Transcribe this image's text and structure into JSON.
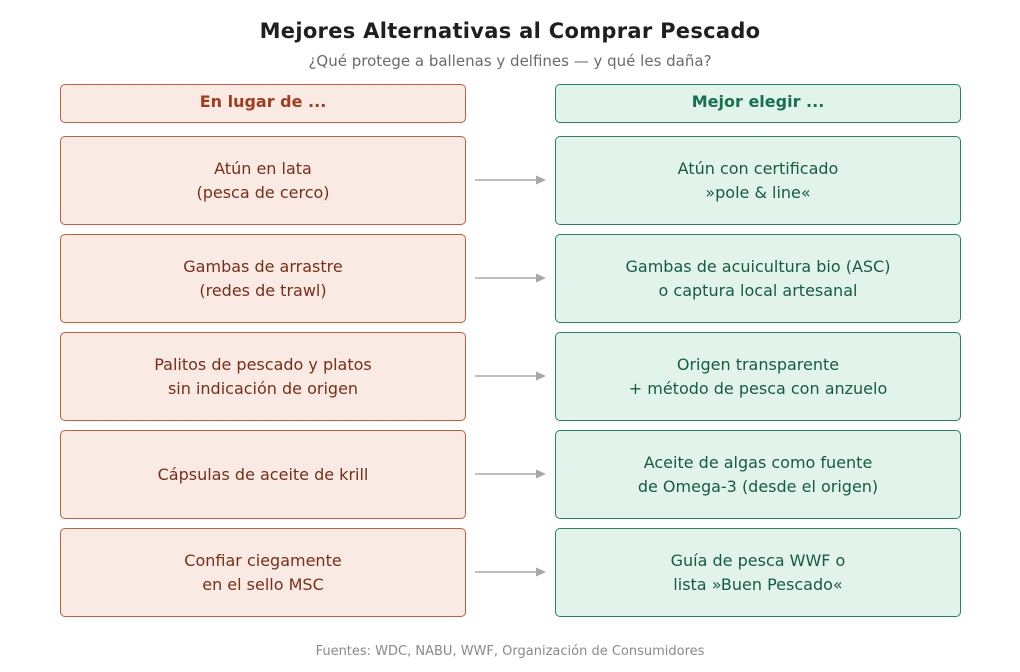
{
  "title": "Mejores Alternativas al Comprar Pescado",
  "subtitle": "¿Qué protege a ballenas y delfines — y qué les daña?",
  "headers": {
    "left": "En lugar de ...",
    "right": "Mejor elegir ..."
  },
  "rows": [
    {
      "left": "Atún en lata\n(pesca de cerco)",
      "right": "Atún con certificado\n»pole & line«"
    },
    {
      "left": "Gambas de arrastre\n(redes de trawl)",
      "right": "Gambas de acuicultura bio (ASC)\no captura local artesanal"
    },
    {
      "left": "Palitos de pescado y platos\nsin indicación de origen",
      "right": "Origen transparente\n+ método de pesca con anzuelo"
    },
    {
      "left": "Cápsulas de aceite de krill",
      "right": "Aceite de algas como fuente\nde Omega-3 (desde el origen)"
    },
    {
      "left": "Confiar ciegamente\nen el sello MSC",
      "right": "Guía de pesca WWF o\nlista »Buen Pescado«"
    }
  ],
  "footer": "Fuentes: WDC, NABU, WWF, Organización de Consumidores",
  "colors": {
    "left_fill": "#f9eae4",
    "left_border": "#c0603d",
    "left_text": "#7a2e17",
    "right_fill": "#e2f3ec",
    "right_border": "#23845f",
    "right_text": "#145c42",
    "arrow": "#a8a8a8"
  }
}
